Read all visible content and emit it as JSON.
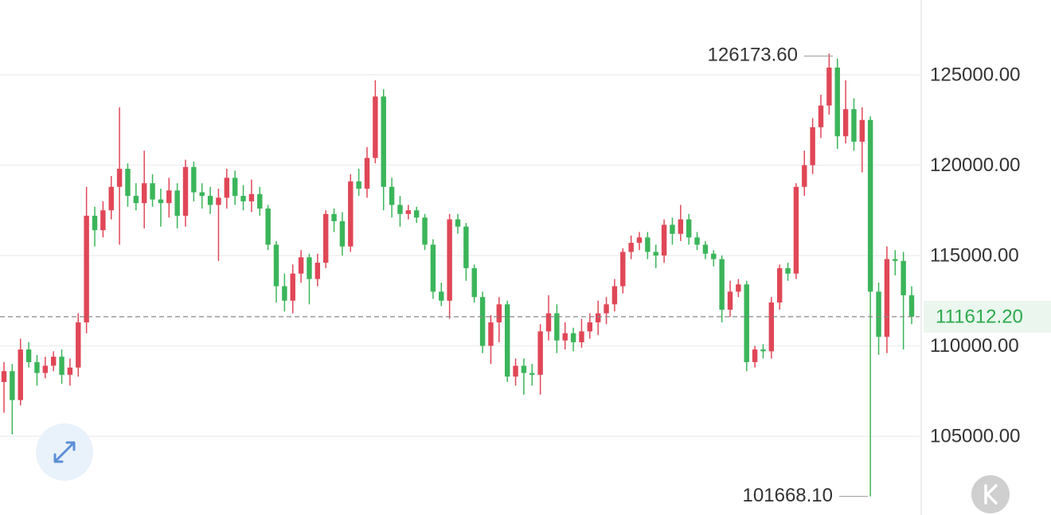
{
  "chart_data": {
    "type": "candlestick",
    "open": [
      108000,
      108600,
      107000,
      109800,
      109100,
      108500,
      108900,
      109400,
      108400,
      108800,
      111300,
      117200,
      116400,
      117500,
      118800,
      119800,
      118300,
      117900,
      119000,
      118100,
      117900,
      118600,
      117200,
      119900,
      118500,
      118300,
      117800,
      118200,
      119300,
      118300,
      118000,
      118400,
      117600,
      115600,
      113300,
      112500,
      114000,
      114900,
      113700,
      114600,
      117300,
      116900,
      115500,
      119100,
      118700,
      120400,
      123800,
      118800,
      117800,
      117300,
      117500,
      117100,
      115600,
      113000,
      112500,
      117000,
      116600,
      114300,
      112700,
      110000,
      111300,
      112300,
      108300,
      108900,
      108500,
      108400,
      110800,
      111800,
      110300,
      110700,
      110200,
      110800,
      111300,
      111800,
      112300,
      113300,
      115200,
      115700,
      116000,
      115200,
      115000,
      116700,
      116200,
      117000,
      116000,
      115600,
      115100,
      114800,
      112000,
      113000,
      113400,
      109100,
      109800,
      109700,
      112400,
      114300,
      114000,
      118800,
      120000,
      122100,
      123300,
      125400,
      121600,
      123100,
      121300,
      122500,
      113000,
      110500,
      114800,
      114700,
      112800
    ],
    "high": [
      109100,
      109000,
      110400,
      110200,
      109500,
      109400,
      109700,
      109800,
      109300,
      111800,
      118800,
      117700,
      118000,
      119400,
      123200,
      120100,
      119000,
      120800,
      119500,
      118700,
      119300,
      119000,
      120300,
      120200,
      119000,
      118800,
      118700,
      119800,
      119700,
      118900,
      119200,
      118800,
      117800,
      115800,
      114000,
      114500,
      115300,
      115100,
      115100,
      117500,
      117600,
      117400,
      119500,
      119800,
      121000,
      124700,
      124200,
      119300,
      118300,
      117800,
      117700,
      117300,
      115900,
      113500,
      117300,
      117300,
      116800,
      114500,
      113000,
      111700,
      112700,
      112500,
      109300,
      109300,
      109000,
      111200,
      112800,
      112300,
      111300,
      111000,
      111500,
      111800,
      112500,
      112700,
      113700,
      115400,
      116100,
      116300,
      116300,
      115600,
      117000,
      117100,
      117800,
      117300,
      116300,
      115800,
      115300,
      115000,
      113600,
      113700,
      113600,
      110000,
      110100,
      112700,
      114500,
      114600,
      119000,
      120800,
      122600,
      123900,
      126173.6,
      125900,
      124700,
      123700,
      123200,
      122700,
      113500,
      115500,
      115300,
      115200,
      113300
    ],
    "low": [
      106300,
      105100,
      106700,
      108800,
      107800,
      108200,
      108600,
      107900,
      107800,
      108300,
      110700,
      115500,
      116000,
      117000,
      115600,
      117700,
      117500,
      116500,
      117700,
      116600,
      117100,
      116500,
      116600,
      118000,
      117600,
      117300,
      114700,
      117600,
      117800,
      117500,
      117400,
      117200,
      115300,
      112400,
      111900,
      111800,
      113500,
      112300,
      113300,
      114300,
      116300,
      115000,
      115200,
      118300,
      118200,
      120100,
      117500,
      117100,
      116600,
      117000,
      116800,
      115300,
      112600,
      112200,
      111500,
      116200,
      113600,
      112400,
      109600,
      109000,
      110200,
      108000,
      107800,
      107300,
      107800,
      107300,
      110300,
      109600,
      109800,
      109700,
      109900,
      110400,
      110600,
      111200,
      111900,
      112900,
      114800,
      115300,
      114800,
      114300,
      114600,
      115600,
      115800,
      115600,
      115300,
      114800,
      114400,
      111300,
      111600,
      112700,
      108600,
      108800,
      109300,
      109300,
      112000,
      113600,
      113700,
      118300,
      119500,
      121500,
      122800,
      120900,
      121200,
      120800,
      119600,
      101668.1,
      109500,
      109600,
      113900,
      109800,
      111200
    ],
    "close": [
      108600,
      107000,
      109800,
      109100,
      108500,
      108900,
      109400,
      108400,
      108800,
      111300,
      117200,
      116400,
      117500,
      118800,
      119800,
      118300,
      117900,
      119000,
      118100,
      117900,
      118600,
      117200,
      119900,
      118500,
      118300,
      117800,
      118200,
      119300,
      118300,
      118000,
      118400,
      117600,
      115600,
      113300,
      112500,
      114000,
      114900,
      113700,
      114600,
      117300,
      116900,
      115500,
      119100,
      118700,
      120400,
      123800,
      118800,
      117800,
      117300,
      117500,
      117100,
      115600,
      113000,
      112500,
      117000,
      116600,
      114300,
      112700,
      110000,
      111300,
      112300,
      108300,
      108900,
      108500,
      108400,
      110800,
      111800,
      110300,
      110700,
      110200,
      110800,
      111300,
      111800,
      112300,
      113300,
      115200,
      115700,
      116000,
      115200,
      115000,
      116700,
      116200,
      117000,
      116000,
      115600,
      115100,
      114800,
      112000,
      113000,
      113400,
      109100,
      109800,
      109700,
      112400,
      114300,
      114000,
      118800,
      120000,
      122100,
      123300,
      125400,
      121600,
      123100,
      121300,
      122500,
      113000,
      110500,
      114800,
      114700,
      112800,
      111612.2
    ],
    "up_color": "#e04757",
    "down_color": "#3bb55a",
    "ylim": [
      100640,
      129140
    ],
    "yticks": [
      {
        "value": 105000,
        "label": "105000.00"
      },
      {
        "value": 110000,
        "label": "110000.00"
      },
      {
        "value": 115000,
        "label": "115000.00"
      },
      {
        "value": 120000,
        "label": "120000.00"
      },
      {
        "value": 125000,
        "label": "125000.00"
      }
    ],
    "grid": true,
    "last_price": {
      "value": 111612.2,
      "label": "111612.20"
    },
    "max_label": {
      "value": 126173.6,
      "label": "126173.60"
    },
    "min_label": {
      "value": 101668.1,
      "label": "101668.10"
    }
  }
}
